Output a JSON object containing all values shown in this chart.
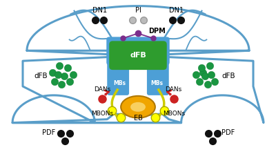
{
  "bg_color": "#ffffff",
  "brain_color": "#5a9ec9",
  "brain_lw": 2.2,
  "mb_color": "#4d9fd6",
  "dfb_color": "#2e9c2e",
  "dfb_text_color": "#ffffff",
  "eb_color": "#f0a500",
  "eb_inner_color": "#f8d060",
  "dpm_color": "#7b2d8b",
  "dan_color": "#cc2222",
  "mbon_color": "#ffff00",
  "mbon_edge_color": "#aaa800",
  "dfb_node_color": "#1a9641",
  "black": "#111111",
  "gray": "#bbbbbb",
  "yellow_stem": "#cccc00",
  "labels": {
    "DN1_left": "DN1",
    "DN1_right": "DN1",
    "PI": "PI",
    "DPM": "DPM",
    "dFB_left": "dFB",
    "dFB_right": "dFB",
    "dFB_center": "dFB",
    "DANs_left": "DANs",
    "DANs_right": "DANs",
    "MBONs_left": "MBONs",
    "MBONs_right": "MBONs",
    "PDF_left": "PDF",
    "PDF_right": "PDF",
    "EB": "EB",
    "MBs_left": "MBs",
    "MBs_right": "MBs"
  }
}
